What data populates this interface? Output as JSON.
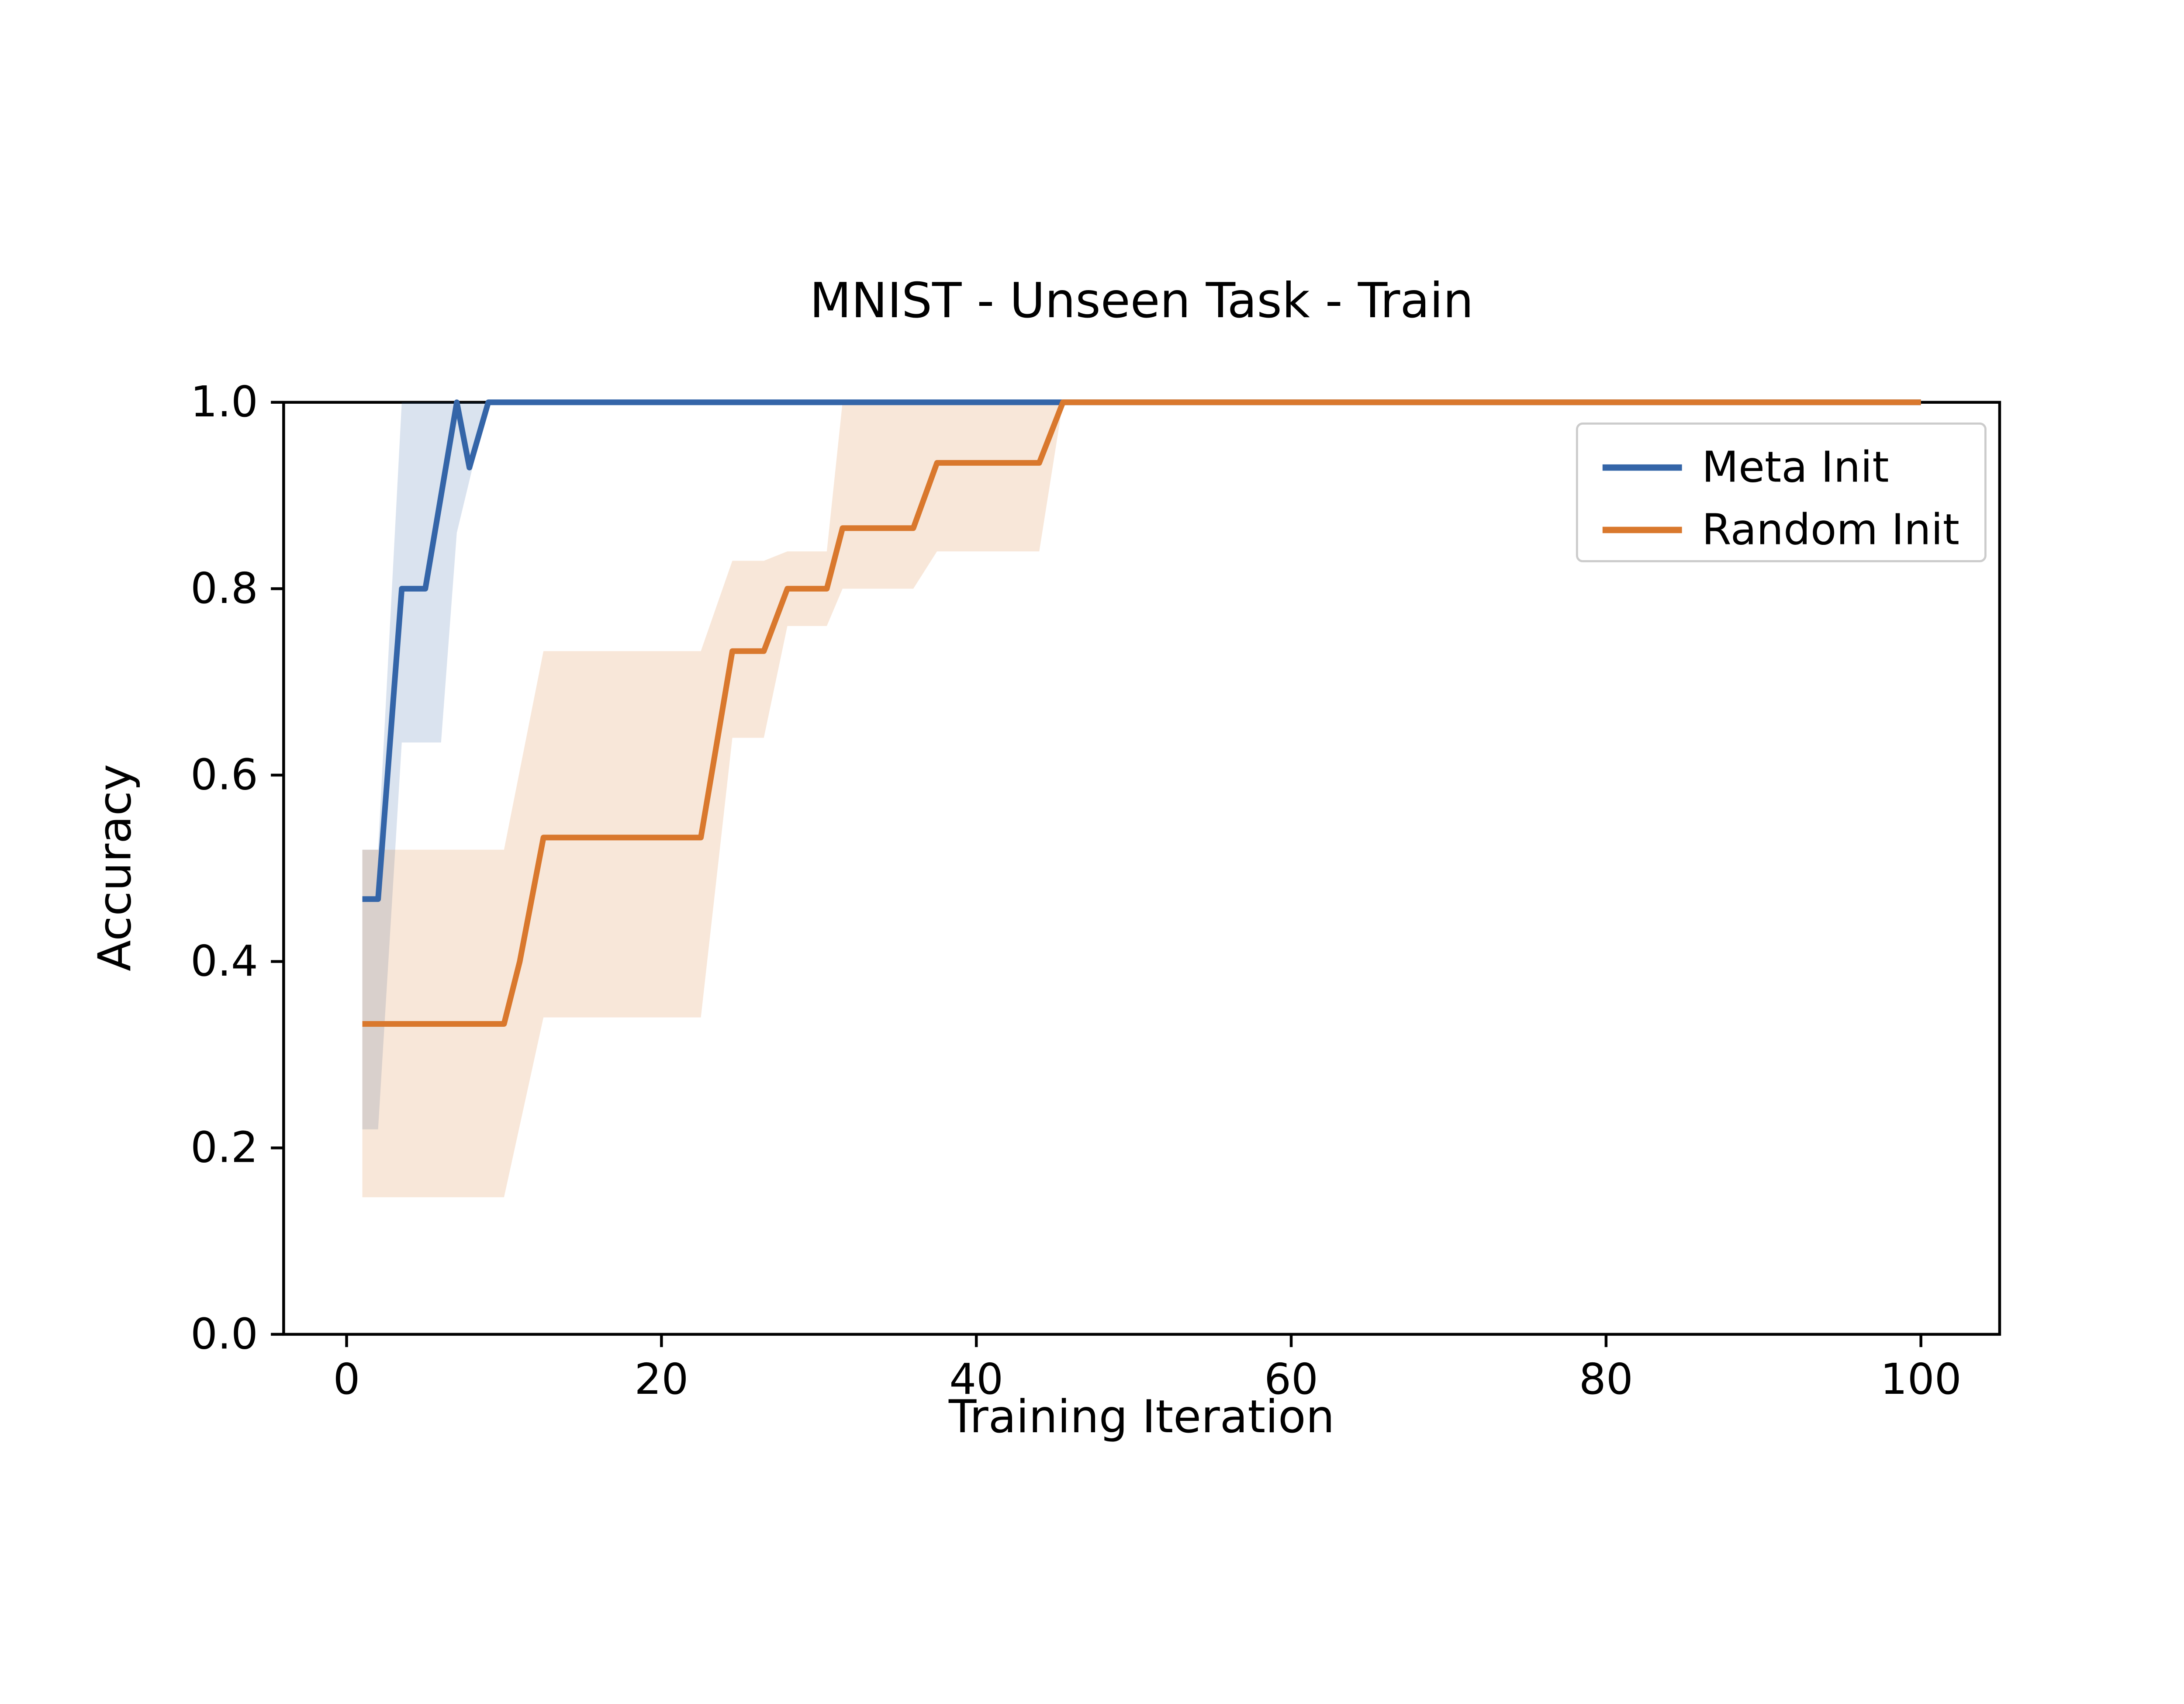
{
  "chart_data": {
    "type": "line",
    "title": "MNIST - Unseen Task - Train",
    "xlabel": "Training Iteration",
    "ylabel": "Accuracy",
    "xlim": [
      -4,
      105
    ],
    "ylim": [
      0.0,
      1.0
    ],
    "x_ticks": [
      0,
      20,
      40,
      60,
      80,
      100
    ],
    "x_tick_labels": [
      "0",
      "20",
      "40",
      "60",
      "80",
      "100"
    ],
    "y_ticks": [
      0.0,
      0.2,
      0.4,
      0.6,
      0.8,
      1.0
    ],
    "y_tick_labels": [
      "0.0",
      "0.2",
      "0.4",
      "0.6",
      "0.8",
      "1.0"
    ],
    "grid": false,
    "legend_position": "upper right",
    "series": [
      {
        "name": "Meta Init",
        "color": "#3465a8",
        "band_opacity": 0.18,
        "x": [
          1,
          2,
          3.5,
          5,
          7,
          7.8,
          9,
          100
        ],
        "y": [
          0.467,
          0.467,
          0.8,
          0.8,
          1.0,
          0.93,
          1.0,
          1.0
        ],
        "band_x": [
          1,
          2,
          3.5,
          6,
          7,
          9,
          100
        ],
        "band_lower": [
          0.22,
          0.22,
          0.635,
          0.635,
          0.86,
          1.0,
          1.0
        ],
        "band_upper": [
          0.52,
          0.52,
          1.0,
          1.0,
          1.0,
          1.0,
          1.0
        ]
      },
      {
        "name": "Random Init",
        "color": "#d9782d",
        "band_opacity": 0.18,
        "x": [
          1,
          10,
          11,
          12.5,
          22.5,
          24.5,
          26.5,
          28,
          30.5,
          31.5,
          36,
          37.5,
          44,
          45.5,
          100
        ],
        "y": [
          0.333,
          0.333,
          0.4,
          0.533,
          0.533,
          0.733,
          0.733,
          0.8,
          0.8,
          0.865,
          0.865,
          0.935,
          0.935,
          1.0,
          1.0
        ],
        "band_x": [
          1,
          10,
          12.5,
          22.5,
          24.5,
          26.5,
          28,
          30.5,
          31.5,
          36,
          37.5,
          44,
          45.5,
          100
        ],
        "band_lower": [
          0.147,
          0.147,
          0.34,
          0.34,
          0.64,
          0.64,
          0.76,
          0.76,
          0.8,
          0.8,
          0.84,
          0.84,
          1.0,
          1.0
        ],
        "band_upper": [
          0.52,
          0.52,
          0.733,
          0.733,
          0.83,
          0.83,
          0.84,
          0.84,
          1.0,
          1.0,
          1.0,
          1.0,
          1.0,
          1.0
        ]
      }
    ]
  }
}
